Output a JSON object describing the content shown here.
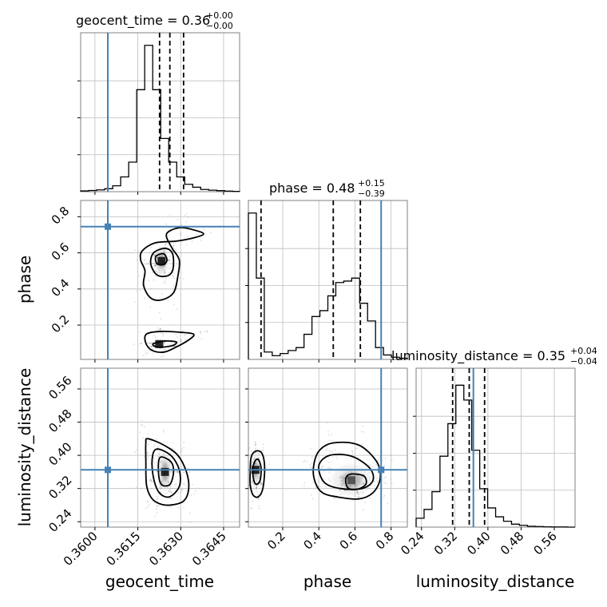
{
  "colors": {
    "truth": "#4682b4",
    "frame": "#808080",
    "grid": "#bdbdbd",
    "hist": "#000000",
    "contour": "#000000",
    "quantile": "#000000"
  },
  "chart_data": {
    "type": "corner",
    "parameters": [
      "geocent_time",
      "phase",
      "luminosity_distance"
    ],
    "truths": {
      "geocent_time": 0.36045,
      "phase": 0.745,
      "luminosity_distance": 0.365
    },
    "titles": {
      "geocent_time": {
        "prefix": "geocent_time = 0.36",
        "plus": "+0.00",
        "minus": "−0.00"
      },
      "phase": {
        "prefix": "phase = 0.48",
        "plus": "+0.15",
        "minus": "−0.39"
      },
      "luminosity_distance": {
        "prefix": "luminosity_distance = 0.35",
        "plus": "+0.04",
        "minus": "−0.04"
      }
    },
    "axis_labels": {
      "x": [
        "geocent_time",
        "phase",
        "luminosity_distance"
      ],
      "y": [
        "phase",
        "luminosity_distance"
      ]
    },
    "ranges": {
      "geocent_time": [
        0.3595,
        0.36506
      ],
      "phase": [
        0.01,
        0.89
      ],
      "luminosity_distance": [
        0.227,
        0.61
      ]
    },
    "ticks": {
      "geocent_time": [
        0.36,
        0.3615,
        0.363,
        0.3645
      ],
      "phase": [
        0.2,
        0.4,
        0.6,
        0.8
      ],
      "luminosity_distance": [
        0.24,
        0.32,
        0.4,
        0.48,
        0.56
      ]
    },
    "tick_labels": {
      "geocent_time": [
        "0.3600",
        "0.3615",
        "0.3630",
        "0.3645"
      ],
      "phase": [
        "0.2",
        "0.4",
        "0.6",
        "0.8"
      ],
      "luminosity_distance": [
        "0.24",
        "0.32",
        "0.40",
        "0.48",
        "0.56"
      ]
    },
    "quantiles": {
      "geocent_time": [
        0.36226,
        0.36262,
        0.3631
      ],
      "phase": [
        0.08,
        0.48,
        0.63
      ],
      "luminosity_distance": [
        0.315,
        0.355,
        0.392
      ]
    },
    "histograms": {
      "geocent_time": {
        "edges": [
          0.3595,
          0.35978,
          0.36006,
          0.36034,
          0.36062,
          0.3609,
          0.36118,
          0.36146,
          0.36174,
          0.36202,
          0.3623,
          0.36258,
          0.36286,
          0.36314,
          0.36342,
          0.3637,
          0.36398,
          0.36426,
          0.36454,
          0.36482,
          0.36506
        ],
        "counts": [
          0.005,
          0.008,
          0.012,
          0.02,
          0.04,
          0.1,
          0.2,
          0.69,
          0.99,
          0.69,
          0.36,
          0.2,
          0.1,
          0.05,
          0.03,
          0.015,
          0.01,
          0.007,
          0.004,
          0.002
        ]
      },
      "phase": {
        "edges": [
          0.01,
          0.054,
          0.098,
          0.142,
          0.186,
          0.23,
          0.274,
          0.318,
          0.362,
          0.406,
          0.45,
          0.494,
          0.538,
          0.582,
          0.626,
          0.67,
          0.714,
          0.758,
          0.802,
          0.846,
          0.89
        ],
        "counts": [
          0.99,
          0.55,
          0.05,
          0.025,
          0.04,
          0.06,
          0.08,
          0.17,
          0.29,
          0.33,
          0.43,
          0.52,
          0.53,
          0.55,
          0.38,
          0.26,
          0.08,
          0.03,
          0.015,
          0.008
        ]
      },
      "luminosity_distance": {
        "edges": [
          0.227,
          0.2462,
          0.2653,
          0.2845,
          0.3036,
          0.3228,
          0.342,
          0.3611,
          0.3803,
          0.3994,
          0.4186,
          0.4377,
          0.4569,
          0.476,
          0.4952,
          0.5143,
          0.5335,
          0.5527,
          0.5718,
          0.591,
          0.61
        ],
        "counts": [
          0.06,
          0.12,
          0.24,
          0.48,
          0.7,
          0.96,
          0.86,
          0.52,
          0.26,
          0.13,
          0.07,
          0.04,
          0.02,
          0.012,
          0.006,
          0.004,
          0.002,
          0.001,
          0.001,
          0.0
        ]
      }
    },
    "contours": {
      "phase_vs_geocent_time": [
        [
          [
            0.3621,
            0.655
          ],
          [
            0.36285,
            0.665
          ],
          [
            0.3635,
            0.685
          ],
          [
            0.3638,
            0.705
          ],
          [
            0.3635,
            0.725
          ],
          [
            0.363,
            0.74
          ],
          [
            0.3626,
            0.72
          ],
          [
            0.3625,
            0.69
          ],
          [
            0.3627,
            0.625
          ],
          [
            0.36295,
            0.56
          ],
          [
            0.3629,
            0.47
          ],
          [
            0.36275,
            0.38
          ],
          [
            0.36235,
            0.34
          ],
          [
            0.36195,
            0.35
          ],
          [
            0.3617,
            0.42
          ],
          [
            0.36175,
            0.5
          ],
          [
            0.3616,
            0.56
          ],
          [
            0.36165,
            0.61
          ]
        ],
        [
          [
            0.36205,
            0.6
          ],
          [
            0.36245,
            0.625
          ],
          [
            0.3627,
            0.6
          ],
          [
            0.36275,
            0.54
          ],
          [
            0.36268,
            0.49
          ],
          [
            0.36245,
            0.47
          ],
          [
            0.36215,
            0.48
          ],
          [
            0.36195,
            0.54
          ]
        ],
        [
          [
            0.36213,
            0.58
          ],
          [
            0.3624,
            0.595
          ],
          [
            0.36252,
            0.56
          ],
          [
            0.3624,
            0.535
          ],
          [
            0.36217,
            0.54
          ]
        ],
        [
          [
            0.3618,
            0.15
          ],
          [
            0.3623,
            0.165
          ],
          [
            0.363,
            0.16
          ],
          [
            0.36345,
            0.15
          ],
          [
            0.3633,
            0.12
          ],
          [
            0.3628,
            0.075
          ],
          [
            0.3624,
            0.05
          ],
          [
            0.362,
            0.06
          ],
          [
            0.36178,
            0.1
          ]
        ],
        [
          [
            0.36205,
            0.098
          ],
          [
            0.36245,
            0.112
          ],
          [
            0.36285,
            0.106
          ],
          [
            0.3627,
            0.086
          ],
          [
            0.3623,
            0.078
          ],
          [
            0.36208,
            0.084
          ]
        ]
      ],
      "luminosity_distance_vs_geocent_time": [
        [
          [
            0.36185,
            0.44
          ],
          [
            0.3624,
            0.425
          ],
          [
            0.3629,
            0.4
          ],
          [
            0.3632,
            0.36
          ],
          [
            0.36328,
            0.32
          ],
          [
            0.3631,
            0.29
          ],
          [
            0.3626,
            0.28
          ],
          [
            0.3622,
            0.285
          ],
          [
            0.36195,
            0.3
          ],
          [
            0.3618,
            0.33
          ],
          [
            0.36178,
            0.39
          ],
          [
            0.36178,
            0.43
          ]
        ],
        [
          [
            0.36215,
            0.415
          ],
          [
            0.36265,
            0.4
          ],
          [
            0.36295,
            0.365
          ],
          [
            0.36295,
            0.325
          ],
          [
            0.3626,
            0.3
          ],
          [
            0.36225,
            0.31
          ],
          [
            0.36205,
            0.345
          ],
          [
            0.362,
            0.39
          ]
        ],
        [
          [
            0.36228,
            0.395
          ],
          [
            0.36265,
            0.385
          ],
          [
            0.36275,
            0.36
          ],
          [
            0.36262,
            0.33
          ],
          [
            0.36232,
            0.33
          ],
          [
            0.36222,
            0.362
          ]
        ]
      ],
      "luminosity_distance_vs_phase": [
        [
          [
            0.02,
            0.36
          ],
          [
            0.025,
            0.395
          ],
          [
            0.05,
            0.41
          ],
          [
            0.085,
            0.405
          ],
          [
            0.1,
            0.37
          ],
          [
            0.09,
            0.32
          ],
          [
            0.065,
            0.3
          ],
          [
            0.035,
            0.305
          ],
          [
            0.02,
            0.33
          ]
        ],
        [
          [
            0.035,
            0.365
          ],
          [
            0.045,
            0.385
          ],
          [
            0.065,
            0.39
          ],
          [
            0.08,
            0.37
          ],
          [
            0.075,
            0.34
          ],
          [
            0.055,
            0.33
          ],
          [
            0.04,
            0.34
          ]
        ],
        [
          [
            0.37,
            0.37
          ],
          [
            0.4,
            0.41
          ],
          [
            0.48,
            0.43
          ],
          [
            0.62,
            0.425
          ],
          [
            0.72,
            0.385
          ],
          [
            0.74,
            0.345
          ],
          [
            0.7,
            0.31
          ],
          [
            0.62,
            0.295
          ],
          [
            0.5,
            0.3
          ],
          [
            0.42,
            0.31
          ],
          [
            0.38,
            0.335
          ]
        ],
        [
          [
            0.4,
            0.375
          ],
          [
            0.46,
            0.4
          ],
          [
            0.58,
            0.398
          ],
          [
            0.68,
            0.37
          ],
          [
            0.7,
            0.34
          ],
          [
            0.64,
            0.32
          ],
          [
            0.52,
            0.32
          ],
          [
            0.43,
            0.335
          ]
        ],
        [
          [
            0.55,
            0.345
          ],
          [
            0.58,
            0.355
          ],
          [
            0.65,
            0.35
          ],
          [
            0.66,
            0.33
          ],
          [
            0.61,
            0.318
          ],
          [
            0.56,
            0.322
          ]
        ]
      ]
    },
    "density_blobs": {
      "phase_vs_geocent_time": [
        {
          "x": 0.36233,
          "y": 0.555,
          "sx": 0.00014,
          "sy": 0.05,
          "w": 0.9
        },
        {
          "x": 0.36225,
          "y": 0.095,
          "sx": 0.00012,
          "sy": 0.012,
          "w": 0.9
        }
      ],
      "luminosity_distance_vs_geocent_time": [
        {
          "x": 0.36245,
          "y": 0.36,
          "sx": 0.00012,
          "sy": 0.03,
          "w": 0.9
        }
      ],
      "luminosity_distance_vs_phase": [
        {
          "x": 0.05,
          "y": 0.365,
          "sx": 0.015,
          "sy": 0.025,
          "w": 0.9
        },
        {
          "x": 0.58,
          "y": 0.34,
          "sx": 0.07,
          "sy": 0.025,
          "w": 0.6
        }
      ]
    },
    "grid": true
  }
}
